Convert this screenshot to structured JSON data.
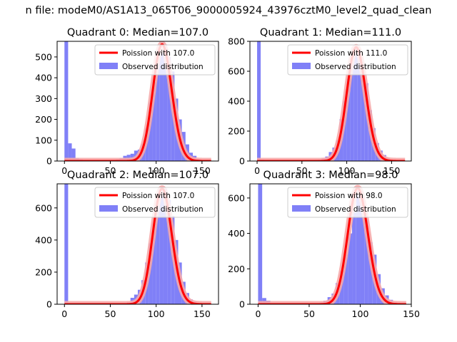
{
  "figure": {
    "suptitle": "n file: modeM0/AS1A13_065T06_9000005924_43976cztM0_level2_quad_clean"
  },
  "colors": {
    "bars": "#8080f7",
    "curve": "#ff0000",
    "curve_glow": "#f6a8a8",
    "axes": "#000000",
    "background": "#ffffff"
  },
  "chart_data": [
    {
      "type": "bar",
      "title": "Quadrant 0: Median=107.0",
      "xlim": [
        -8,
        168
      ],
      "ylim": [
        0,
        575
      ],
      "xticks": [
        0,
        50,
        100,
        150
      ],
      "yticks": [
        0,
        100,
        200,
        300,
        400,
        500
      ],
      "legend": {
        "position": "top-right",
        "entries": [
          "Poission with 107.0",
          "Observed distribution"
        ]
      },
      "series": [
        {
          "name": "Poission with 107.0",
          "kind": "poisson",
          "mean": 107.0,
          "peak": 560,
          "x_range": [
            0,
            160
          ]
        },
        {
          "name": "Observed distribution",
          "kind": "histogram",
          "bin_width": 4,
          "bins": [
            [
              0,
              575
            ],
            [
              4,
              85
            ],
            [
              8,
              60
            ],
            [
              12,
              15
            ],
            [
              16,
              8
            ],
            [
              20,
              5
            ],
            [
              24,
              3
            ],
            [
              28,
              2
            ],
            [
              32,
              2
            ],
            [
              36,
              2
            ],
            [
              40,
              3
            ],
            [
              44,
              2
            ],
            [
              48,
              3
            ],
            [
              52,
              5
            ],
            [
              56,
              8
            ],
            [
              60,
              15
            ],
            [
              64,
              25
            ],
            [
              68,
              30
            ],
            [
              72,
              35
            ],
            [
              76,
              50
            ],
            [
              80,
              55
            ],
            [
              84,
              80
            ],
            [
              88,
              160
            ],
            [
              92,
              280
            ],
            [
              96,
              380
            ],
            [
              100,
              470
            ],
            [
              104,
              520
            ],
            [
              108,
              560
            ],
            [
              112,
              500
            ],
            [
              116,
              430
            ],
            [
              120,
              300
            ],
            [
              124,
              200
            ],
            [
              128,
              140
            ],
            [
              132,
              80
            ],
            [
              136,
              40
            ],
            [
              140,
              25
            ],
            [
              144,
              10
            ],
            [
              148,
              5
            ],
            [
              152,
              3
            ],
            [
              156,
              2
            ]
          ]
        }
      ]
    },
    {
      "type": "bar",
      "title": "Quadrant 1: Median=111.0",
      "xlim": [
        -8,
        172
      ],
      "ylim": [
        0,
        800
      ],
      "xticks": [
        0,
        50,
        100,
        150
      ],
      "yticks": [
        0,
        200,
        400,
        600,
        800
      ],
      "legend": {
        "position": "top-right",
        "entries": [
          "Poission with 111.0",
          "Observed distribution"
        ]
      },
      "series": [
        {
          "name": "Poission with 111.0",
          "kind": "poisson",
          "mean": 111.0,
          "peak": 760,
          "x_range": [
            0,
            165
          ]
        },
        {
          "name": "Observed distribution",
          "kind": "histogram",
          "bin_width": 4,
          "bins": [
            [
              0,
              800
            ],
            [
              4,
              10
            ],
            [
              8,
              5
            ],
            [
              12,
              3
            ],
            [
              16,
              2
            ],
            [
              20,
              2
            ],
            [
              24,
              2
            ],
            [
              28,
              2
            ],
            [
              32,
              2
            ],
            [
              36,
              2
            ],
            [
              40,
              2
            ],
            [
              44,
              2
            ],
            [
              48,
              3
            ],
            [
              52,
              3
            ],
            [
              56,
              4
            ],
            [
              60,
              5
            ],
            [
              64,
              8
            ],
            [
              68,
              10
            ],
            [
              72,
              20
            ],
            [
              76,
              30
            ],
            [
              80,
              60
            ],
            [
              84,
              90
            ],
            [
              88,
              140
            ],
            [
              92,
              280
            ],
            [
              96,
              400
            ],
            [
              100,
              550
            ],
            [
              104,
              690
            ],
            [
              108,
              760
            ],
            [
              112,
              700
            ],
            [
              116,
              620
            ],
            [
              120,
              520
            ],
            [
              124,
              340
            ],
            [
              128,
              220
            ],
            [
              132,
              120
            ],
            [
              136,
              70
            ],
            [
              140,
              40
            ],
            [
              144,
              20
            ],
            [
              148,
              10
            ],
            [
              152,
              5
            ],
            [
              156,
              3
            ],
            [
              160,
              2
            ]
          ]
        }
      ]
    },
    {
      "type": "bar",
      "title": "Quadrant 2: Median=107.0",
      "xlim": [
        -8,
        168
      ],
      "ylim": [
        0,
        750
      ],
      "xticks": [
        0,
        50,
        100,
        150
      ],
      "yticks": [
        0,
        200,
        400,
        600
      ],
      "legend": {
        "position": "top-right",
        "entries": [
          "Poission with 107.0",
          "Observed distribution"
        ]
      },
      "series": [
        {
          "name": "Poission with 107.0",
          "kind": "poisson",
          "mean": 107.0,
          "peak": 720,
          "x_range": [
            0,
            160
          ]
        },
        {
          "name": "Observed distribution",
          "kind": "histogram",
          "bin_width": 4,
          "bins": [
            [
              0,
              750
            ],
            [
              4,
              5
            ],
            [
              8,
              3
            ],
            [
              12,
              2
            ],
            [
              16,
              2
            ],
            [
              20,
              2
            ],
            [
              24,
              2
            ],
            [
              28,
              2
            ],
            [
              32,
              2
            ],
            [
              36,
              2
            ],
            [
              40,
              2
            ],
            [
              44,
              2
            ],
            [
              48,
              2
            ],
            [
              52,
              3
            ],
            [
              56,
              4
            ],
            [
              60,
              5
            ],
            [
              64,
              8
            ],
            [
              68,
              12
            ],
            [
              72,
              40
            ],
            [
              76,
              60
            ],
            [
              80,
              90
            ],
            [
              84,
              150
            ],
            [
              88,
              260
            ],
            [
              92,
              380
            ],
            [
              96,
              500
            ],
            [
              100,
              620
            ],
            [
              104,
              690
            ],
            [
              108,
              720
            ],
            [
              112,
              650
            ],
            [
              116,
              550
            ],
            [
              120,
              400
            ],
            [
              124,
              260
            ],
            [
              128,
              140
            ],
            [
              132,
              70
            ],
            [
              136,
              30
            ],
            [
              140,
              15
            ],
            [
              144,
              8
            ],
            [
              148,
              4
            ],
            [
              152,
              2
            ]
          ]
        }
      ]
    },
    {
      "type": "bar",
      "title": "Quadrant 3: Median=98.0",
      "xlim": [
        -8,
        150
      ],
      "ylim": [
        0,
        680
      ],
      "xticks": [
        0,
        50,
        100,
        150
      ],
      "yticks": [
        0,
        200,
        400,
        600
      ],
      "legend": {
        "position": "top-right",
        "entries": [
          "Poission with 98.0",
          "Observed distribution"
        ]
      },
      "series": [
        {
          "name": "Poission with 98.0",
          "kind": "poisson",
          "mean": 98.0,
          "peak": 655,
          "x_range": [
            0,
            145
          ]
        },
        {
          "name": "Observed distribution",
          "kind": "histogram",
          "bin_width": 4,
          "bins": [
            [
              0,
              680
            ],
            [
              4,
              35
            ],
            [
              8,
              20
            ],
            [
              12,
              5
            ],
            [
              16,
              3
            ],
            [
              20,
              2
            ],
            [
              24,
              2
            ],
            [
              28,
              2
            ],
            [
              32,
              2
            ],
            [
              36,
              2
            ],
            [
              40,
              2
            ],
            [
              44,
              3
            ],
            [
              48,
              4
            ],
            [
              52,
              5
            ],
            [
              56,
              6
            ],
            [
              60,
              10
            ],
            [
              64,
              20
            ],
            [
              68,
              40
            ],
            [
              72,
              60
            ],
            [
              76,
              120
            ],
            [
              80,
              190
            ],
            [
              84,
              280
            ],
            [
              88,
              400
            ],
            [
              92,
              520
            ],
            [
              96,
              650
            ],
            [
              100,
              600
            ],
            [
              104,
              480
            ],
            [
              108,
              350
            ],
            [
              112,
              280
            ],
            [
              116,
              170
            ],
            [
              120,
              90
            ],
            [
              124,
              50
            ],
            [
              128,
              25
            ],
            [
              132,
              10
            ],
            [
              136,
              5
            ],
            [
              140,
              2
            ]
          ]
        }
      ]
    }
  ]
}
